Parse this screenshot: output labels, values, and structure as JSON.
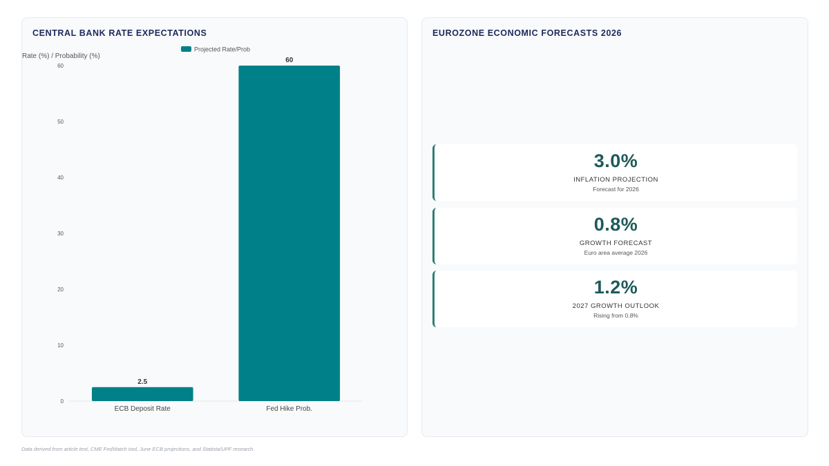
{
  "left_panel": {
    "title": "CENTRAL BANK RATE EXPECTATIONS"
  },
  "right_panel": {
    "title": "EUROZONE ECONOMIC FORECASTS 2026",
    "cards": [
      {
        "value": "3.0%",
        "label": "INFLATION PROJECTION",
        "sub": "Forecast for 2026"
      },
      {
        "value": "0.8%",
        "label": "GROWTH FORECAST",
        "sub": "Euro area average 2026"
      },
      {
        "value": "1.2%",
        "label": "2027 GROWTH OUTLOOK",
        "sub": "Rising from 0.8%"
      }
    ]
  },
  "footnote": "Data derived from article text, CME FedWatch tool, June ECB projections, and Statista/UPF research.",
  "colors": {
    "bar": "#008088",
    "kpi_value": "#1e5a5a",
    "title": "#1c2a5a",
    "card_border": "#2f7d73"
  },
  "chart_data": {
    "type": "bar",
    "categories": [
      "ECB Deposit Rate",
      "Fed Hike Prob."
    ],
    "series": [
      {
        "name": "Projected Rate/Prob",
        "values": [
          2.5,
          60
        ]
      }
    ],
    "data_labels": [
      "2.5",
      "60"
    ],
    "ylabel": "Rate (%) / Probability (%)",
    "ylim": [
      0,
      60
    ],
    "yticks": [
      0,
      10,
      20,
      30,
      40,
      50,
      60
    ],
    "grid": false,
    "legend": "top-center"
  }
}
